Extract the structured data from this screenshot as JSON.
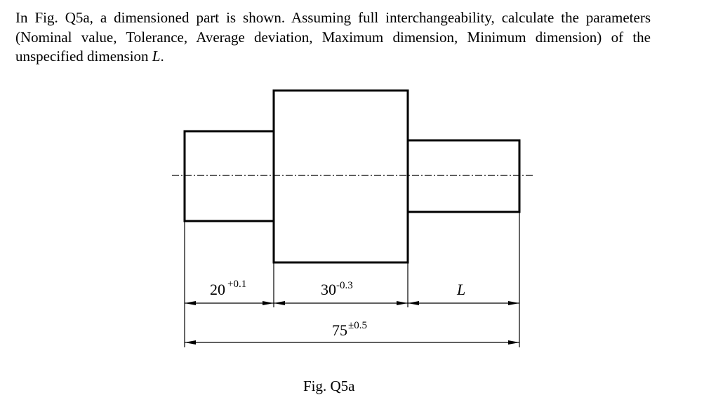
{
  "question": {
    "text": "In Fig. Q5a, a dimensioned part is shown. Assuming full interchangeability, calculate the parameters (Nominal value, Tolerance, Average deviation, Maximum dimension, Minimum dimension) of the unspecified dimension",
    "symbol": "L",
    "end": "."
  },
  "figure": {
    "dimensions": [
      {
        "nominal": "20",
        "tolerance": "+0.1"
      },
      {
        "nominal": "30",
        "tolerance": "-0.3"
      },
      {
        "nominal": "L"
      },
      {
        "nominal": "75",
        "tolerance": "±0.5"
      }
    ],
    "caption": "Fig. Q5a"
  }
}
